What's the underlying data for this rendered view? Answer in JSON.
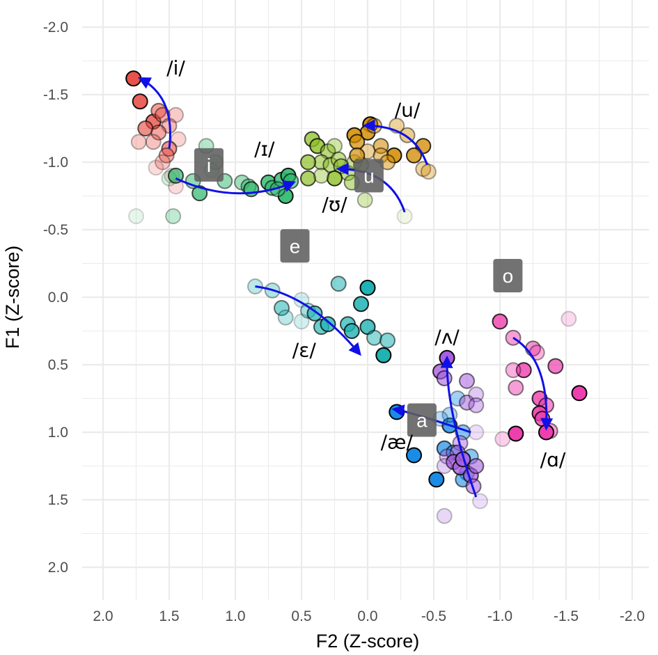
{
  "chart_data": {
    "type": "scatter",
    "title": "",
    "xlabel": "F2 (Z-score)",
    "ylabel": "F1 (Z-score)",
    "xlim": [
      2.0,
      -2.0
    ],
    "ylim": [
      -2.0,
      2.0
    ],
    "x_reversed": true,
    "y_reversed": true,
    "x_ticks": [
      "2.0",
      "1.5",
      "1.0",
      "0.5",
      "0.0",
      "-0.5",
      "-1.0",
      "-1.5",
      "-2.0"
    ],
    "y_ticks": [
      "-2.0",
      "-1.5",
      "-1.0",
      "-0.5",
      "0.0",
      "0.5",
      "1.0",
      "1.5",
      "2.0"
    ],
    "grid": true,
    "legend": "none",
    "series": [
      {
        "vowel": "i",
        "color": "#e8524a",
        "points": [
          [
            1.77,
            -1.62,
            1
          ],
          [
            1.72,
            -1.45,
            0.9
          ],
          [
            1.62,
            -1.3,
            0.8
          ],
          [
            1.68,
            -1.25,
            0.65
          ],
          [
            1.58,
            -1.38,
            0.55
          ],
          [
            1.55,
            -1.35,
            0.45
          ],
          [
            1.5,
            -1.27,
            0.4
          ],
          [
            1.45,
            -1.35,
            0.3
          ],
          [
            1.58,
            -1.22,
            0.5
          ],
          [
            1.62,
            -1.15,
            0.35
          ],
          [
            1.43,
            -1.17,
            0.25
          ],
          [
            1.73,
            -1.15,
            0.3
          ],
          [
            1.5,
            -1.1,
            0.6
          ],
          [
            1.52,
            -1.05,
            0.45
          ],
          [
            1.55,
            -1.0,
            0.3
          ],
          [
            1.6,
            -0.96,
            0.2
          ],
          [
            1.48,
            -0.9,
            0.2
          ],
          [
            1.45,
            -0.82,
            0.2
          ]
        ]
      },
      {
        "vowel": "ɪ",
        "color": "#2eb86b",
        "points": [
          [
            1.75,
            -0.6,
            0.12
          ],
          [
            1.47,
            -0.6,
            0.3
          ],
          [
            1.5,
            -0.88,
            0.2
          ],
          [
            1.45,
            -0.9,
            0.7
          ],
          [
            1.27,
            -0.77,
            0.7
          ],
          [
            1.32,
            -0.86,
            0.5
          ],
          [
            1.22,
            -1.12,
            0.35
          ],
          [
            1.15,
            -1.0,
            0.3
          ],
          [
            1.18,
            -0.94,
            0.2
          ],
          [
            1.08,
            -0.86,
            0.5
          ],
          [
            0.95,
            -0.85,
            0.45
          ],
          [
            0.9,
            -0.82,
            0.5
          ],
          [
            0.88,
            -0.8,
            0.7
          ],
          [
            0.75,
            -0.85,
            0.8
          ],
          [
            0.72,
            -0.81,
            0.6
          ],
          [
            0.65,
            -0.87,
            0.8
          ],
          [
            0.6,
            -0.9,
            0.9
          ],
          [
            0.62,
            -0.75,
            0.9
          ],
          [
            0.68,
            -0.8,
            0.5
          ],
          [
            0.58,
            -0.86,
            0.6
          ]
        ]
      },
      {
        "vowel": "ʊ",
        "color": "#8cbf26",
        "points": [
          [
            0.42,
            -1.17,
            0.75
          ],
          [
            0.38,
            -1.12,
            0.8
          ],
          [
            0.3,
            -1.08,
            0.6
          ],
          [
            0.25,
            -1.12,
            0.4
          ],
          [
            0.35,
            -1.0,
            0.55
          ],
          [
            0.45,
            -1.0,
            0.7
          ],
          [
            0.28,
            -0.98,
            0.55
          ],
          [
            0.22,
            -1.02,
            0.5
          ],
          [
            0.2,
            -0.97,
            0.6
          ],
          [
            0.15,
            -0.92,
            0.5
          ],
          [
            0.1,
            -1.0,
            0.45
          ],
          [
            0.05,
            -0.98,
            0.45
          ],
          [
            0.25,
            -0.88,
            0.8
          ],
          [
            0.45,
            -0.88,
            0.7
          ],
          [
            0.35,
            -0.9,
            0.4
          ],
          [
            0.12,
            -0.85,
            0.5
          ],
          [
            0.02,
            -0.72,
            0.35
          ],
          [
            -0.28,
            -0.6,
            0.12
          ]
        ]
      },
      {
        "vowel": "u",
        "color": "#d4900b",
        "points": [
          [
            -0.02,
            -1.28,
            1
          ],
          [
            0.0,
            -1.22,
            0.85
          ],
          [
            -0.05,
            -1.27,
            0.5
          ],
          [
            0.1,
            -1.2,
            0.9
          ],
          [
            0.08,
            -1.15,
            0.75
          ],
          [
            -0.1,
            -1.12,
            0.6
          ],
          [
            -0.22,
            -1.27,
            0.4
          ],
          [
            -0.3,
            -1.2,
            0.45
          ],
          [
            -0.42,
            -1.12,
            0.8
          ],
          [
            -0.35,
            -1.05,
            0.8
          ],
          [
            -0.2,
            -1.05,
            0.9
          ],
          [
            -0.1,
            -1.05,
            0.5
          ],
          [
            0.0,
            -1.08,
            0.4
          ],
          [
            0.08,
            -1.05,
            0.7
          ],
          [
            -0.15,
            -1.0,
            0.5
          ],
          [
            -0.42,
            -0.95,
            0.4
          ],
          [
            -0.46,
            -0.93,
            0.35
          ]
        ]
      },
      {
        "vowel": "ɛ",
        "color": "#1fb3b3",
        "points": [
          [
            0.85,
            -0.08,
            0.3
          ],
          [
            0.72,
            -0.05,
            0.35
          ],
          [
            0.65,
            0.08,
            0.55
          ],
          [
            0.62,
            0.15,
            0.3
          ],
          [
            0.5,
            0.02,
            0.2
          ],
          [
            0.45,
            0.1,
            0.4
          ],
          [
            0.4,
            0.12,
            0.7
          ],
          [
            0.35,
            0.22,
            0.65
          ],
          [
            0.3,
            0.2,
            0.75
          ],
          [
            0.22,
            -0.1,
            0.55
          ],
          [
            0.15,
            0.2,
            0.7
          ],
          [
            0.12,
            0.25,
            0.8
          ],
          [
            0.05,
            0.05,
            0.85
          ],
          [
            0.0,
            -0.07,
            1
          ],
          [
            0.0,
            0.22,
            0.8
          ],
          [
            -0.05,
            0.3,
            0.5
          ],
          [
            -0.15,
            0.32,
            0.55
          ],
          [
            -0.12,
            0.43,
            1
          ],
          [
            0.5,
            0.18,
            0.2
          ]
        ]
      },
      {
        "vowel": "æ",
        "color": "#1a8ce6",
        "points": [
          [
            -0.22,
            0.85,
            1
          ],
          [
            -0.35,
            1.17,
            1
          ],
          [
            -0.52,
            1.35,
            1
          ],
          [
            -0.62,
            0.95,
            0.8
          ],
          [
            -0.58,
            1.12,
            0.7
          ],
          [
            -0.65,
            1.15,
            0.6
          ],
          [
            -0.72,
            1.0,
            0.5
          ],
          [
            -0.78,
            1.18,
            0.5
          ],
          [
            -0.75,
            1.3,
            0.55
          ],
          [
            -0.72,
            1.35,
            0.6
          ],
          [
            -0.62,
            0.87,
            0.35
          ],
          [
            -0.68,
            0.75,
            0.4
          ],
          [
            -0.55,
            0.9,
            0.3
          ]
        ]
      },
      {
        "vowel": "ʌ",
        "color": "#a75fe0",
        "points": [
          [
            -0.6,
            0.45,
            1
          ],
          [
            -0.55,
            0.55,
            0.8
          ],
          [
            -0.58,
            0.6,
            0.6
          ],
          [
            -0.75,
            0.62,
            0.55
          ],
          [
            -0.75,
            0.78,
            0.5
          ],
          [
            -0.82,
            0.72,
            0.35
          ],
          [
            -0.82,
            0.8,
            0.4
          ],
          [
            -0.7,
            1.08,
            0.45
          ],
          [
            -0.68,
            1.15,
            0.55
          ],
          [
            -0.6,
            1.18,
            0.4
          ],
          [
            -0.65,
            1.22,
            0.75
          ],
          [
            -0.7,
            1.26,
            0.8
          ],
          [
            -0.72,
            1.2,
            0.85
          ],
          [
            -0.78,
            1.32,
            0.7
          ],
          [
            -0.82,
            1.25,
            0.6
          ],
          [
            -0.8,
            1.4,
            0.55
          ],
          [
            -0.85,
            1.51,
            0.2
          ],
          [
            -0.58,
            1.62,
            0.25
          ],
          [
            -0.58,
            1.25,
            0.3
          ],
          [
            -0.82,
            1.0,
            0.2
          ]
        ]
      },
      {
        "vowel": "ɑ",
        "color": "#ed3fae",
        "points": [
          [
            -1.0,
            0.18,
            0.8
          ],
          [
            -1.1,
            0.3,
            0.5
          ],
          [
            -1.25,
            0.38,
            0.55
          ],
          [
            -1.28,
            0.41,
            0.4
          ],
          [
            -1.42,
            0.51,
            0.7
          ],
          [
            -1.18,
            0.54,
            0.8
          ],
          [
            -1.12,
            0.67,
            0.5
          ],
          [
            -1.3,
            0.75,
            0.8
          ],
          [
            -1.35,
            0.8,
            0.6
          ],
          [
            -1.3,
            0.86,
            0.9
          ],
          [
            -1.32,
            0.9,
            0.8
          ],
          [
            -1.38,
            0.99,
            0.5
          ],
          [
            -1.35,
            1.0,
            1
          ],
          [
            -1.12,
            1.01,
            1
          ],
          [
            -1.02,
            1.05,
            0.25
          ],
          [
            -1.6,
            0.71,
            1
          ],
          [
            -1.52,
            0.16,
            0.2
          ],
          [
            -1.1,
            0.54,
            0.4
          ]
        ]
      }
    ],
    "trajectories": [
      {
        "vowel": "i",
        "points": [
          [
            1.5,
            -1.1
          ],
          [
            1.53,
            -1.42
          ],
          [
            1.72,
            -1.62
          ]
        ]
      },
      {
        "vowel": "ɪ",
        "points": [
          [
            1.45,
            -0.88
          ],
          [
            1.0,
            -0.77
          ],
          [
            0.56,
            -0.85
          ]
        ]
      },
      {
        "vowel": "ʊ",
        "points": [
          [
            -0.28,
            -0.63
          ],
          [
            -0.1,
            -0.87
          ],
          [
            0.22,
            -0.95
          ]
        ]
      },
      {
        "vowel": "u",
        "points": [
          [
            -0.45,
            -0.98
          ],
          [
            -0.28,
            -1.2
          ],
          [
            0.02,
            -1.27
          ]
        ]
      },
      {
        "vowel": "ɛ",
        "points": [
          [
            0.85,
            -0.08
          ],
          [
            0.45,
            0.07
          ],
          [
            0.06,
            0.42
          ]
        ]
      },
      {
        "vowel": "ʌ",
        "points": [
          [
            -0.82,
            1.48
          ],
          [
            -0.65,
            0.9
          ],
          [
            -0.6,
            0.45
          ]
        ]
      },
      {
        "vowel": "æ",
        "points": [
          [
            -0.78,
            1.0
          ],
          [
            -0.4,
            0.88
          ],
          [
            -0.2,
            0.83
          ]
        ]
      },
      {
        "vowel": "ɑ",
        "points": [
          [
            -1.1,
            0.3
          ],
          [
            -1.3,
            0.55
          ],
          [
            -1.35,
            0.97
          ]
        ]
      }
    ],
    "vowel_labels": [
      {
        "text": "/i/",
        "x": 1.45,
        "y": -1.7
      },
      {
        "text": "/ɪ/",
        "x": 0.78,
        "y": -1.1
      },
      {
        "text": "/ʊ/",
        "x": 0.25,
        "y": -0.69
      },
      {
        "text": "/u/",
        "x": -0.3,
        "y": -1.39
      },
      {
        "text": "/ɛ/",
        "x": 0.48,
        "y": 0.39
      },
      {
        "text": "/ʌ/",
        "x": -0.6,
        "y": 0.29
      },
      {
        "text": "/æ/",
        "x": -0.22,
        "y": 1.07
      },
      {
        "text": "/ɑ/",
        "x": -1.4,
        "y": 1.2
      }
    ],
    "key_labels": [
      {
        "text": "i",
        "x": 1.2,
        "y": -0.98
      },
      {
        "text": "u",
        "x": -0.01,
        "y": -0.9
      },
      {
        "text": "e",
        "x": 0.55,
        "y": -0.38
      },
      {
        "text": "o",
        "x": -1.06,
        "y": -0.16
      },
      {
        "text": "a",
        "x": -0.41,
        "y": 0.91
      }
    ]
  }
}
